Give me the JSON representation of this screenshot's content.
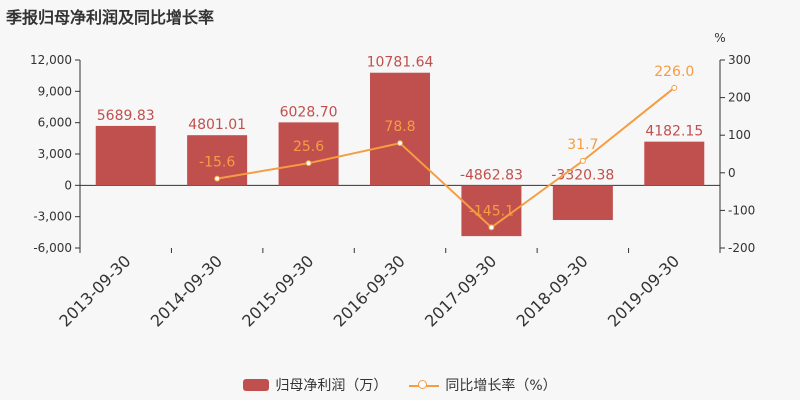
{
  "title": "季报归母净利润及同比增长率",
  "colors": {
    "bar": "#c0504d",
    "line": "#f59d42",
    "axis": "#333333",
    "label_bar": "#c0504d",
    "label_line": "#f59d42"
  },
  "chart_data": {
    "type": "bar",
    "categories": [
      "2013-09-30",
      "2014-09-30",
      "2015-09-30",
      "2016-09-30",
      "2017-09-30",
      "2018-09-30",
      "2019-09-30"
    ],
    "series": [
      {
        "name": "归母净利润（万）",
        "type": "bar",
        "axis": "left",
        "values": [
          5689.83,
          4801.01,
          6028.7,
          10781.64,
          -4862.83,
          -3320.38,
          4182.15
        ],
        "labels": [
          "5689.83",
          "4801.01",
          "6028.70",
          "10781.64",
          "-4862.83",
          "-3320.38",
          "4182.15"
        ]
      },
      {
        "name": "同比增长率（%）",
        "type": "line",
        "axis": "right",
        "values": [
          null,
          -15.6,
          25.6,
          78.8,
          -145.1,
          31.7,
          226.0
        ],
        "labels": [
          "",
          "-15.6",
          "25.6",
          "78.8",
          "-145.1",
          "31.7",
          "226.0"
        ]
      }
    ],
    "y_left": {
      "ticks": [
        12000,
        9000,
        6000,
        3000,
        0,
        -3000,
        -6000
      ],
      "tick_labels": [
        "12,000",
        "9,000",
        "6,000",
        "3,000",
        "0",
        "-3,000",
        "-6,000"
      ],
      "range": [
        -6000,
        12000
      ]
    },
    "y_right": {
      "label": "%",
      "ticks": [
        300,
        200,
        100,
        0,
        -100,
        -200
      ],
      "tick_labels": [
        "300",
        "200",
        "100",
        "0",
        "-100",
        "-200"
      ],
      "range": [
        -200,
        300
      ]
    },
    "legend_position": "bottom",
    "grid": false
  },
  "legend": {
    "bar_label": "归母净利润（万）",
    "line_label": "同比增长率（%）"
  }
}
